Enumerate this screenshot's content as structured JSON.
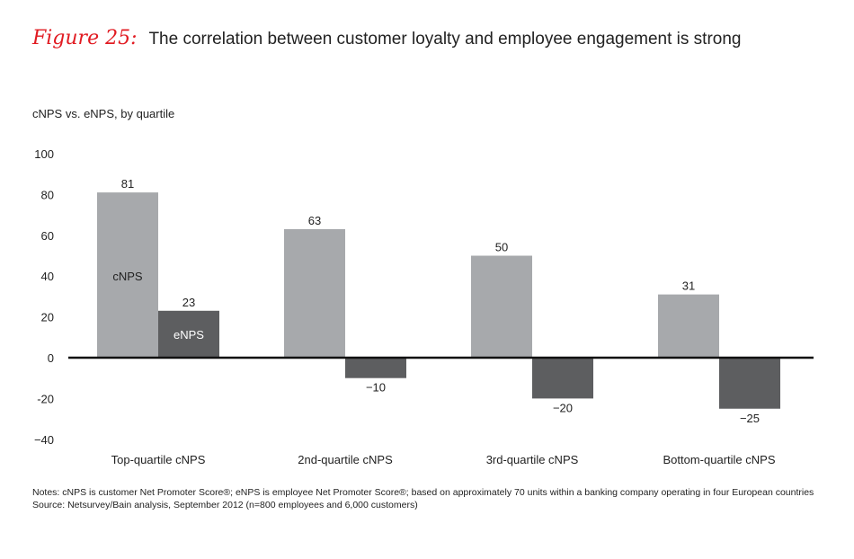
{
  "header": {
    "figure_label": "Figure 25:",
    "title": "The correlation between customer loyalty and employee engagement is strong"
  },
  "subtitle": "cNPS vs. eNPS, by quartile",
  "chart_data": {
    "type": "bar",
    "title": "cNPS vs. eNPS, by quartile",
    "categories": [
      "Top-quartile cNPS",
      "2nd-quartile cNPS",
      "3rd-quartile cNPS",
      "Bottom-quartile cNPS"
    ],
    "series": [
      {
        "name": "cNPS",
        "values": [
          81,
          63,
          50,
          31
        ],
        "color": "#a7a9ac"
      },
      {
        "name": "eNPS",
        "values": [
          23,
          -10,
          -20,
          -25
        ],
        "color": "#5d5e60"
      }
    ],
    "data_labels": [
      [
        "81",
        "63",
        "50",
        "31"
      ],
      [
        "23",
        "−10",
        "−20",
        "−25"
      ]
    ],
    "ylim": [
      -40,
      100
    ],
    "yticks": [
      -40,
      -20,
      0,
      20,
      40,
      60,
      80,
      100
    ],
    "ytick_labels": [
      "−40",
      "-20",
      "0",
      "20",
      "40",
      "60",
      "80",
      "100"
    ],
    "xlabel": "",
    "ylabel": "",
    "grid": false,
    "legend": "in-bar labels on first group"
  },
  "notes": {
    "line1": "Notes: cNPS is customer Net Promoter Score®; eNPS is employee Net Promoter Score®; based on approximately 70 units within a banking company operating in four European countries",
    "line2": "Source: Netsurvey/Bain analysis, September 2012 (n=800 employees and 6,000 customers)"
  }
}
